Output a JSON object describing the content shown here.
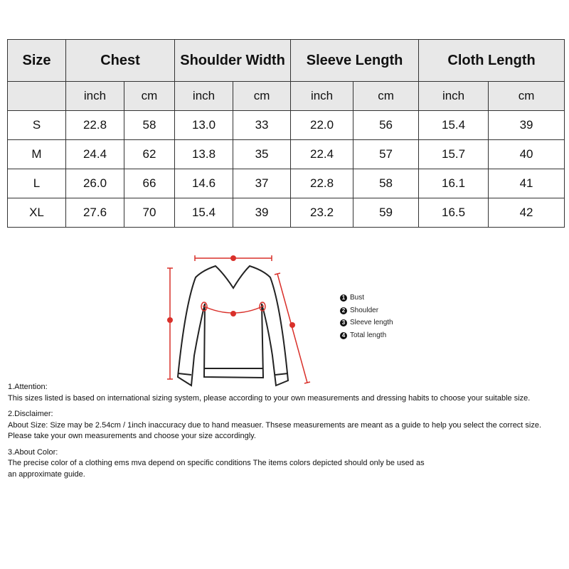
{
  "table": {
    "headers": [
      "Size",
      "Chest",
      "Shoulder Width",
      "Sleeve Length",
      "Cloth Length"
    ],
    "units": [
      "",
      "inch",
      "cm",
      "inch",
      "cm",
      "inch",
      "cm",
      "inch",
      "cm"
    ],
    "rows": [
      [
        "S",
        "22.8",
        "58",
        "13.0",
        "33",
        "22.0",
        "56",
        "15.4",
        "39"
      ],
      [
        "M",
        "24.4",
        "62",
        "13.8",
        "35",
        "22.4",
        "57",
        "15.7",
        "40"
      ],
      [
        "L",
        "26.0",
        "66",
        "14.6",
        "37",
        "22.8",
        "58",
        "16.1",
        "41"
      ],
      [
        "XL",
        "27.6",
        "70",
        "15.4",
        "39",
        "23.2",
        "59",
        "16.5",
        "42"
      ]
    ]
  },
  "legend": [
    {
      "num": "1",
      "label": "Bust"
    },
    {
      "num": "2",
      "label": "Shoulder"
    },
    {
      "num": "3",
      "label": "Sleeve length"
    },
    {
      "num": "4",
      "label": "Total length"
    }
  ],
  "notes": [
    {
      "title": "1.Attention:",
      "lines": [
        "This sizes listed is based on international sizing system, please according to your own measurements and dressing habits to choose your suitable size."
      ]
    },
    {
      "title": "2.Disclaimer:",
      "lines": [
        "About Size: Size may be 2.54cm / 1inch inaccuracy due to hand measuer. Thsese measurements are meant as a guide to help you select the correct size.",
        "Please take your own measurements and choose your size accordingly."
      ]
    },
    {
      "title": "3.About Color:",
      "lines": [
        "The precise color of a clothing ems mva depend on specific conditions The items colors depicted should only be used as",
        "an approximate guide."
      ]
    }
  ],
  "colors": {
    "header_bg": "#e8e8e8",
    "measure_red": "#d9302a"
  }
}
